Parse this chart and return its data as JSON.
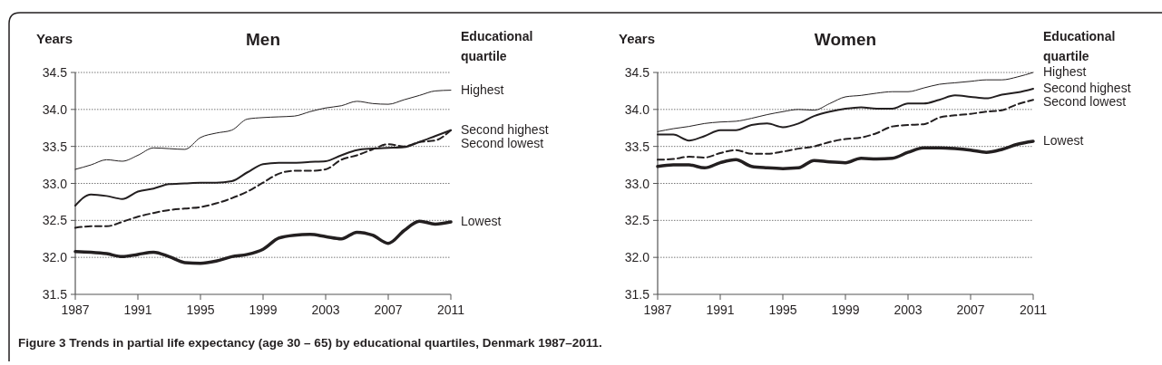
{
  "chart_data": [
    {
      "type": "line",
      "title": "Men",
      "ylabel": "Years",
      "legend_title": "Educational quartile",
      "x": [
        1987,
        1988,
        1989,
        1990,
        1991,
        1992,
        1993,
        1994,
        1995,
        1996,
        1997,
        1998,
        1999,
        2000,
        2001,
        2002,
        2003,
        2004,
        2005,
        2006,
        2007,
        2008,
        2009,
        2010,
        2011
      ],
      "xlim": [
        1987,
        2011
      ],
      "xticks": [
        1987,
        1991,
        1995,
        1999,
        2003,
        2007,
        2011
      ],
      "ylim": [
        31.5,
        34.5
      ],
      "yticks": [
        {
          "value": 31.5,
          "label": "31.5"
        },
        {
          "value": 32,
          "label": "32.0"
        },
        {
          "value": 32.5,
          "label": "32.5"
        },
        {
          "value": 33,
          "label": "33.0"
        },
        {
          "value": 33.5,
          "label": "33.5"
        },
        {
          "value": 34,
          "label": "34.0"
        },
        {
          "value": 34.5,
          "label": "34.5"
        }
      ],
      "grid": "y",
      "series": [
        {
          "name": "Highest",
          "color": "#231f20",
          "line_style": "solid",
          "values": [
            33.19,
            33.25,
            33.32,
            33.3,
            33.38,
            33.48,
            33.47,
            33.46,
            33.62,
            33.68,
            33.72,
            33.87,
            33.89,
            33.9,
            33.91,
            33.97,
            34.02,
            34.05,
            34.11,
            34.08,
            34.07,
            34.13,
            34.19,
            34.25,
            34.26
          ]
        },
        {
          "name": "Second highest",
          "color": "#231f20",
          "line_style": "solid",
          "values": [
            32.7,
            32.85,
            32.83,
            32.79,
            32.89,
            32.93,
            32.99,
            33.0,
            33.01,
            33.01,
            33.03,
            33.15,
            33.26,
            33.28,
            33.28,
            33.29,
            33.3,
            33.38,
            33.45,
            33.47,
            33.48,
            33.49,
            33.56,
            33.64,
            33.72
          ]
        },
        {
          "name": "Second lowest",
          "color": "#231f20",
          "line_style": "dashed",
          "values": [
            32.4,
            32.42,
            32.42,
            32.48,
            32.55,
            32.6,
            32.64,
            32.66,
            32.68,
            32.73,
            32.8,
            32.89,
            33.01,
            33.13,
            33.17,
            33.17,
            33.19,
            33.32,
            33.38,
            33.46,
            33.53,
            33.5,
            33.56,
            33.58,
            33.72
          ]
        },
        {
          "name": "Lowest",
          "color": "#231f20",
          "line_style": "solid",
          "values": [
            32.08,
            32.07,
            32.05,
            32.01,
            32.04,
            32.07,
            32.01,
            31.93,
            31.92,
            31.95,
            32.01,
            32.04,
            32.11,
            32.26,
            32.3,
            32.31,
            32.28,
            32.25,
            32.34,
            32.3,
            32.19,
            32.36,
            32.49,
            32.45,
            32.48
          ]
        }
      ],
      "annotations": [
        "Figure 3 Trends in partial life expectancy (age 30 – 65) by educational quartiles, Denmark 1987–2011."
      ]
    },
    {
      "type": "line",
      "title": "Women",
      "ylabel": "Years",
      "legend_title": "Educational quartile",
      "x": [
        1987,
        1988,
        1989,
        1990,
        1991,
        1992,
        1993,
        1994,
        1995,
        1996,
        1997,
        1998,
        1999,
        2000,
        2001,
        2002,
        2003,
        2004,
        2005,
        2006,
        2007,
        2008,
        2009,
        2010,
        2011
      ],
      "xlim": [
        1987,
        2011
      ],
      "xticks": [
        1987,
        1991,
        1995,
        1999,
        2003,
        2007,
        2011
      ],
      "ylim": [
        31.5,
        34.5
      ],
      "yticks": [
        {
          "value": 31.5,
          "label": "31.5"
        },
        {
          "value": 32,
          "label": "32.0"
        },
        {
          "value": 32.5,
          "label": "32.5"
        },
        {
          "value": 33,
          "label": "33.0"
        },
        {
          "value": 33.5,
          "label": "33.5"
        },
        {
          "value": 34,
          "label": "34.0"
        },
        {
          "value": 34.5,
          "label": "34.5"
        }
      ],
      "grid": "y",
      "series": [
        {
          "name": "Highest",
          "color": "#231f20",
          "line_style": "solid",
          "values": [
            33.7,
            33.74,
            33.77,
            33.81,
            33.83,
            33.84,
            33.88,
            33.93,
            33.97,
            34.0,
            33.99,
            34.08,
            34.17,
            34.19,
            34.22,
            34.24,
            34.24,
            34.29,
            34.34,
            34.36,
            34.38,
            34.4,
            34.4,
            34.44,
            34.5
          ]
        },
        {
          "name": "Second highest",
          "color": "#231f20",
          "line_style": "solid",
          "values": [
            33.66,
            33.66,
            33.58,
            33.64,
            33.72,
            33.72,
            33.79,
            33.81,
            33.76,
            33.81,
            33.91,
            33.97,
            34.01,
            34.03,
            34.01,
            34.01,
            34.08,
            34.08,
            34.13,
            34.19,
            34.17,
            34.15,
            34.2,
            34.23,
            34.28
          ]
        },
        {
          "name": "Second lowest",
          "color": "#231f20",
          "line_style": "dashed",
          "values": [
            33.32,
            33.33,
            33.36,
            33.35,
            33.41,
            33.45,
            33.4,
            33.4,
            33.43,
            33.47,
            33.5,
            33.56,
            33.6,
            33.62,
            33.68,
            33.77,
            33.79,
            33.8,
            33.89,
            33.92,
            33.94,
            33.97,
            33.99,
            34.07,
            34.13
          ]
        },
        {
          "name": "Lowest",
          "color": "#231f20",
          "line_style": "solid",
          "values": [
            33.23,
            33.25,
            33.25,
            33.21,
            33.28,
            33.32,
            33.23,
            33.21,
            33.2,
            33.21,
            33.31,
            33.29,
            33.28,
            33.34,
            33.33,
            33.34,
            33.42,
            33.48,
            33.48,
            33.47,
            33.45,
            33.42,
            33.46,
            33.53,
            33.57
          ]
        }
      ]
    }
  ]
}
